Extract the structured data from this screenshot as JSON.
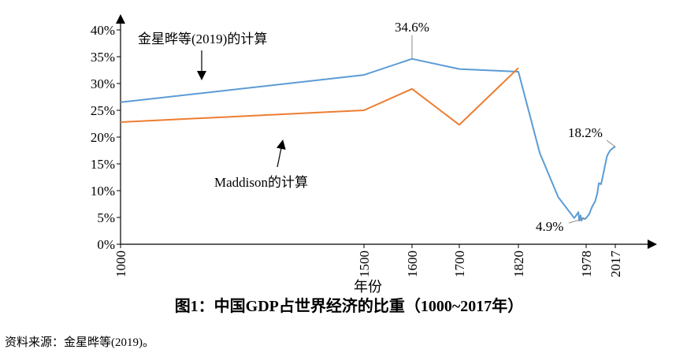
{
  "figure_title": "图1：中国GDP占世界经济的比重（1000~2017年）",
  "source_note": "资料来源：金星晔等(2019)。",
  "chart_data": {
    "type": "line",
    "title": "图1：中国GDP占世界经济的比重（1000~2017年）",
    "xlabel": "年份",
    "ylabel": "",
    "x_ticks": [
      "1000",
      "1500",
      "1600",
      "1700",
      "1820",
      "1978",
      "2017"
    ],
    "y_ticks": [
      "0%",
      "5%",
      "10%",
      "15%",
      "20%",
      "25%",
      "30%",
      "35%",
      "40%"
    ],
    "ylim": [
      0,
      40
    ],
    "grid": false,
    "series": [
      {
        "name": "金星晔等(2019)的计算",
        "color": "#5b9bd5",
        "points": [
          [
            1000,
            26.5
          ],
          [
            1500,
            31.6
          ],
          [
            1600,
            34.6
          ],
          [
            1700,
            32.7
          ],
          [
            1820,
            32.2
          ],
          [
            1870,
            17.0
          ],
          [
            1913,
            8.8
          ],
          [
            1950,
            4.9
          ],
          [
            1956,
            5.5
          ],
          [
            1960,
            6.0
          ],
          [
            1962,
            4.4
          ],
          [
            1965,
            5.4
          ],
          [
            1967,
            4.4
          ],
          [
            1970,
            4.9
          ],
          [
            1975,
            4.7
          ],
          [
            1978,
            4.9
          ],
          [
            1982,
            5.6
          ],
          [
            1986,
            7.0
          ],
          [
            1990,
            8.0
          ],
          [
            1993,
            9.5
          ],
          [
            1995,
            11.4
          ],
          [
            1998,
            11.2
          ],
          [
            2000,
            12.5
          ],
          [
            2003,
            14.5
          ],
          [
            2006,
            16.5
          ],
          [
            2010,
            17.5
          ],
          [
            2014,
            18.0
          ],
          [
            2017,
            18.2
          ]
        ]
      },
      {
        "name": "Maddison的计算",
        "color": "#ed7d31",
        "points": [
          [
            1000,
            22.8
          ],
          [
            1500,
            25.0
          ],
          [
            1600,
            29.0
          ],
          [
            1700,
            22.3
          ],
          [
            1820,
            32.9
          ]
        ]
      }
    ],
    "annotations": [
      "34.6%",
      "18.2%",
      "4.9%"
    ]
  }
}
